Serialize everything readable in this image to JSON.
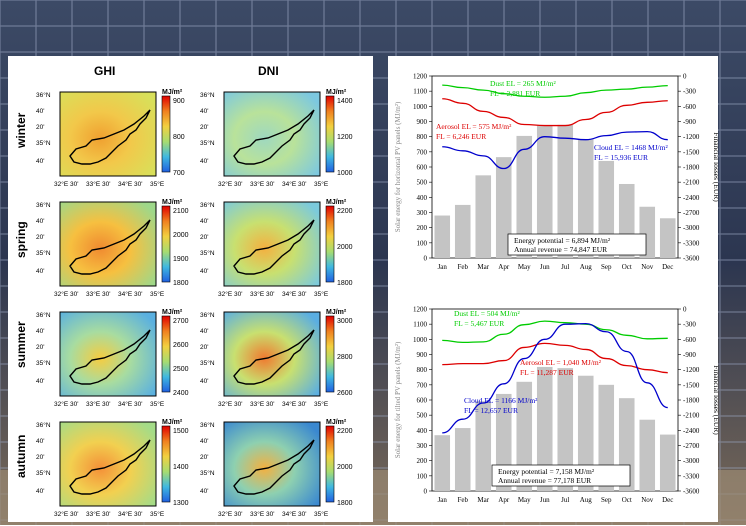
{
  "maps": {
    "columns": [
      "GHI",
      "DNI"
    ],
    "unit": "MJ/m²",
    "lat_labels": [
      "36°N",
      "40'",
      "20'",
      "35°N",
      "40'"
    ],
    "lon_labels": [
      "32°E",
      "30'",
      "33°E",
      "30'",
      "34°E",
      "30'",
      "35°E"
    ],
    "rows": [
      {
        "season": "winter",
        "ghi": {
          "ticks": [
            "900",
            "800",
            "700"
          ],
          "palette": [
            "#f0a030",
            "#f2c84a",
            "#d8e05a"
          ]
        },
        "dni": {
          "ticks": [
            "1400",
            "1200",
            "1000"
          ],
          "palette": [
            "#9ed8c0",
            "#b9e29a",
            "#7cc8e0"
          ]
        }
      },
      {
        "season": "spring",
        "ghi": {
          "ticks": [
            "2100",
            "2000",
            "1900",
            "1800"
          ],
          "palette": [
            "#f08a30",
            "#f6c040",
            "#9ed88a"
          ]
        },
        "dni": {
          "ticks": [
            "2200",
            "2000",
            "1800"
          ],
          "palette": [
            "#f4b040",
            "#c8e070",
            "#7ccadc"
          ]
        }
      },
      {
        "season": "summer",
        "ghi": {
          "ticks": [
            "2700",
            "2600",
            "2500",
            "2400"
          ],
          "palette": [
            "#f6cc40",
            "#a8dca0",
            "#5ab0e0"
          ]
        },
        "dni": {
          "ticks": [
            "3000",
            "2800",
            "2600"
          ],
          "palette": [
            "#f07a30",
            "#c8e070",
            "#5aaee2"
          ]
        }
      },
      {
        "season": "autumn",
        "ghi": {
          "ticks": [
            "1500",
            "1400",
            "1300"
          ],
          "palette": [
            "#f49038",
            "#f2d050",
            "#a4dc88"
          ]
        },
        "dni": {
          "ticks": [
            "2200",
            "2000",
            "1800"
          ],
          "palette": [
            "#f4b040",
            "#8ed0b0",
            "#3a88d0"
          ]
        }
      }
    ]
  },
  "chart_data": [
    {
      "type": "bar",
      "categories": [
        "Jan",
        "Feb",
        "Mar",
        "Apr",
        "May",
        "Jun",
        "Jul",
        "Aug",
        "Sep",
        "Oct",
        "Nov",
        "Dec"
      ],
      "values": [
        280,
        350,
        545,
        665,
        805,
        875,
        878,
        785,
        640,
        488,
        338,
        262
      ],
      "ylabel": "Solar energy for horizontal PV panels (MJ/m²)",
      "y2label": "Financial losses (EUR)",
      "ylim": [
        0,
        1200
      ],
      "y2lim": [
        -3600,
        0
      ],
      "yticks": [
        "0",
        "100",
        "200",
        "300",
        "400",
        "500",
        "600",
        "700",
        "800",
        "900",
        "1000",
        "1100",
        "1200"
      ],
      "y2ticks": [
        "-3600",
        "-3300",
        "-3000",
        "-2700",
        "-2400",
        "-2100",
        "-1800",
        "-1500",
        "-1200",
        "-900",
        "-600",
        "-300",
        "0"
      ],
      "series": [
        {
          "color": "#00cc00",
          "values": [
            -180,
            -230,
            -280,
            -350,
            -400,
            -420,
            -400,
            -330,
            -280,
            -260,
            -220,
            -190
          ]
        },
        {
          "color": "#dd0000",
          "values": [
            -450,
            -540,
            -700,
            -820,
            -960,
            -980,
            -980,
            -860,
            -720,
            -580,
            -520,
            -490
          ]
        },
        {
          "color": "#0000cc",
          "values": [
            -1400,
            -1480,
            -1580,
            -1830,
            -1450,
            -1200,
            -1230,
            -1260,
            -1180,
            -1110,
            -1100,
            -1260
          ]
        }
      ],
      "annotations": [
        "Dust EL = 265 MJ/m²",
        "FL = 2,881 EUR",
        "Aerosol EL = 575 MJ/m²",
        "FL = 6,246 EUR",
        "Cloud EL = 1468 MJ/m²",
        "FL = 15,936 EUR"
      ],
      "summary": [
        "Energy potential = 6,894 MJ/m²",
        "Annual revenue = 74,847 EUR"
      ]
    },
    {
      "type": "bar",
      "categories": [
        "Jan",
        "Feb",
        "Mar",
        "Apr",
        "May",
        "Jun",
        "Jul",
        "Aug",
        "Sep",
        "Oct",
        "Nov",
        "Dec"
      ],
      "values": [
        368,
        415,
        592,
        640,
        720,
        818,
        810,
        760,
        700,
        612,
        470,
        372
      ],
      "ylabel": "Solar energy for tilted PV panels (MJ/m²)",
      "y2label": "Financial losses (EUR)",
      "ylim": [
        0,
        1200
      ],
      "y2lim": [
        -3600,
        0
      ],
      "yticks": [
        "0",
        "100",
        "200",
        "300",
        "400",
        "500",
        "600",
        "700",
        "800",
        "900",
        "1000",
        "1100",
        "1200"
      ],
      "y2ticks": [
        "-3600",
        "-3300",
        "-3000",
        "-2700",
        "-2400",
        "-2100",
        "-1800",
        "-1500",
        "-1200",
        "-900",
        "-600",
        "-300",
        "0"
      ],
      "series": [
        {
          "color": "#00cc00",
          "values": [
            -620,
            -660,
            -650,
            -500,
            -310,
            -240,
            -270,
            -300,
            -410,
            -520,
            -590,
            -580
          ]
        },
        {
          "color": "#dd0000",
          "values": [
            -1100,
            -1080,
            -1080,
            -1020,
            -760,
            -680,
            -720,
            -800,
            -980,
            -1120,
            -1200,
            -1260
          ]
        },
        {
          "color": "#0000cc",
          "values": [
            -2450,
            -2180,
            -1860,
            -1480,
            -980,
            -600,
            -300,
            -290,
            -450,
            -840,
            -1460,
            -1950
          ]
        }
      ],
      "annotations": [
        "Dust EL = 504 MJ/m²",
        "FL = 5,467 EUR",
        "Aerosol EL = 1,040 MJ/m²",
        "FL = 11,287 EUR",
        "Cloud EL = 1166 MJ/m²",
        "FL = 12,657 EUR"
      ],
      "summary": [
        "Energy potential = 7,158 MJ/m²",
        "Annual revenue = 77,178 EUR"
      ]
    }
  ]
}
